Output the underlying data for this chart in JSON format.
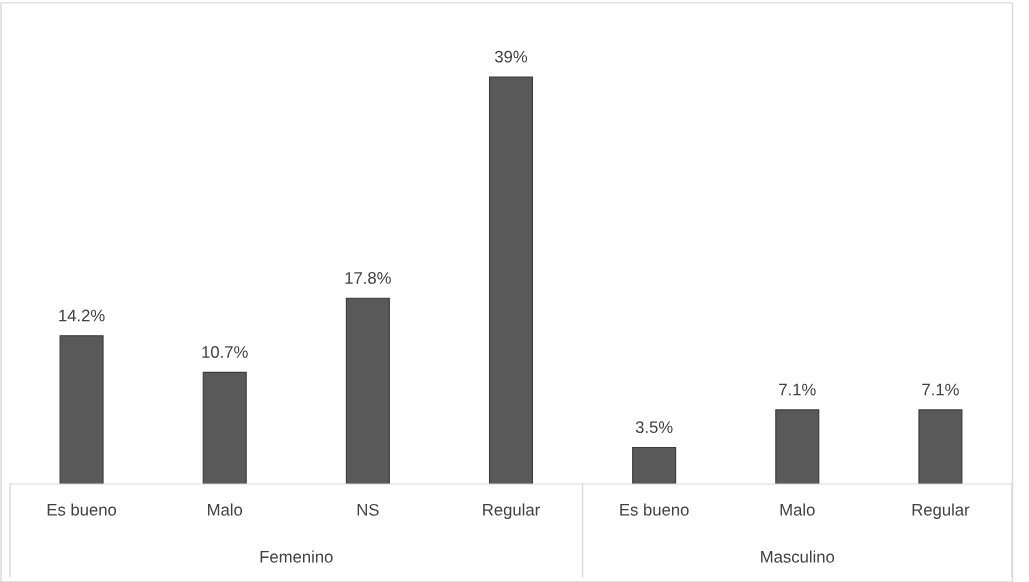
{
  "chart_data": {
    "type": "bar",
    "categories": [
      "Es bueno",
      "Malo",
      "NS",
      "Regular",
      "Es bueno",
      "Malo",
      "Regular"
    ],
    "values": [
      14.2,
      10.7,
      17.8,
      39,
      3.5,
      7.1,
      7.1
    ],
    "value_labels": [
      "14.2%",
      "10.7%",
      "17.8%",
      "39%",
      "3.5%",
      "7.1%",
      "7.1%"
    ],
    "color": "#595959",
    "annotations": [
      "Femenino",
      "Masculino"
    ],
    "grid": false,
    "legend": false
  }
}
